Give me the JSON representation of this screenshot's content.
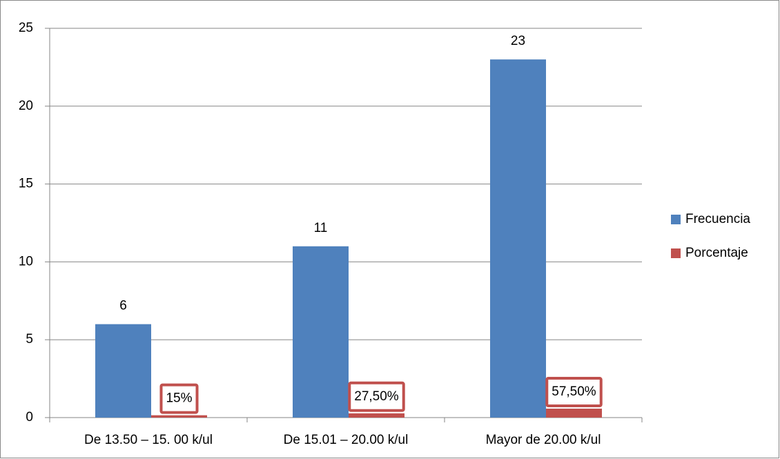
{
  "chart_data": {
    "type": "bar",
    "categories": [
      "De 13.50 – 15. 00 k/ul",
      "De 15.01 – 20.00 k/ul",
      "Mayor de 20.00 k/ul"
    ],
    "series": [
      {
        "name": "Frecuencia",
        "color": "#4f81bd",
        "values": [
          6,
          11,
          23
        ]
      },
      {
        "name": "Porcentaje",
        "color": "#c0504d",
        "values": [
          0.15,
          0.275,
          0.575
        ],
        "value_labels": [
          "15%",
          "27,50%",
          "57,50%"
        ]
      }
    ],
    "ylim": [
      0,
      25
    ],
    "yticks": [
      0,
      5,
      10,
      15,
      20,
      25
    ],
    "grid": true,
    "legend": "right"
  }
}
